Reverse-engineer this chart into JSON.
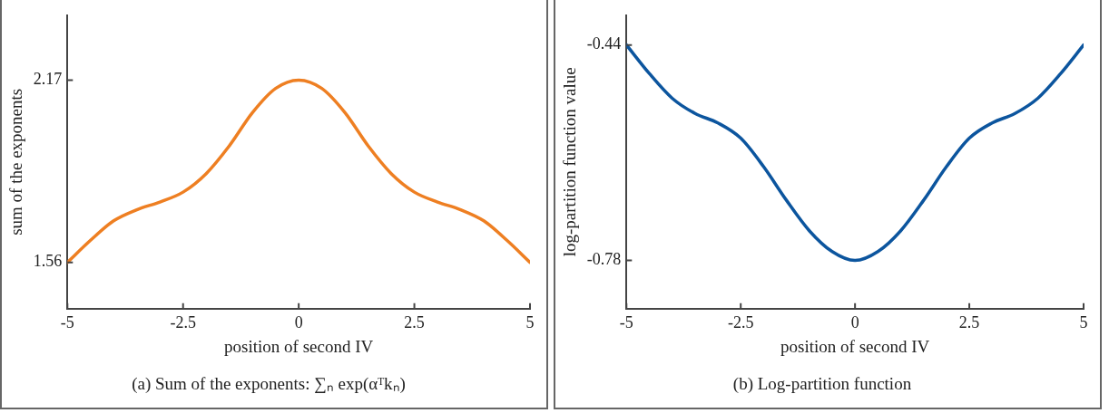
{
  "chart_data": [
    {
      "type": "line",
      "title": "(a) Sum of the exponents: ∑ₙ exp(αᵀkₙ)",
      "xlabel": "position of second IV",
      "ylabel": "sum of the exponents",
      "x": [
        -5,
        -4.5,
        -4,
        -3.5,
        -3,
        -2.5,
        -2,
        -1.5,
        -1,
        -0.5,
        0,
        0.5,
        1,
        1.5,
        2,
        2.5,
        3,
        3.5,
        4,
        4.5,
        5
      ],
      "series": [
        {
          "color": "#ee7f22",
          "values": [
            1.56,
            1.634,
            1.699,
            1.736,
            1.762,
            1.795,
            1.857,
            1.95,
            2.061,
            2.142,
            2.17,
            2.142,
            2.061,
            1.95,
            1.857,
            1.795,
            1.762,
            1.736,
            1.699,
            1.634,
            1.56
          ]
        }
      ],
      "xlim": [
        -5,
        5
      ],
      "xticks": [
        -5,
        -2.5,
        0,
        2.5,
        5
      ],
      "ylim": [
        1.405,
        2.387
      ],
      "yticks": [
        1.56,
        2.17
      ],
      "grid": false,
      "legend": false,
      "marker": "none",
      "line_style": "solid"
    },
    {
      "type": "line",
      "title": "(b) Log-partition function",
      "xlabel": "position of second IV",
      "ylabel": "log-partition function value",
      "x": [
        -5,
        -4.5,
        -4,
        -3.5,
        -3,
        -2.5,
        -2,
        -1.5,
        -1,
        -0.5,
        0,
        0.5,
        1,
        1.5,
        2,
        2.5,
        3,
        3.5,
        4,
        4.5,
        5
      ],
      "series": [
        {
          "color": "#0c559e",
          "values": [
            -0.44,
            -0.485,
            -0.524,
            -0.548,
            -0.563,
            -0.587,
            -0.632,
            -0.685,
            -0.733,
            -0.766,
            -0.78,
            -0.766,
            -0.733,
            -0.685,
            -0.632,
            -0.587,
            -0.563,
            -0.548,
            -0.524,
            -0.485,
            -0.44
          ]
        }
      ],
      "xlim": [
        -5,
        5
      ],
      "xticks": [
        -5,
        -2.5,
        0,
        2.5,
        5
      ],
      "ylim": [
        -0.856,
        -0.393
      ],
      "yticks": [
        -0.78,
        -0.44
      ],
      "grid": false,
      "legend": false,
      "marker": "none",
      "line_style": "solid"
    }
  ]
}
